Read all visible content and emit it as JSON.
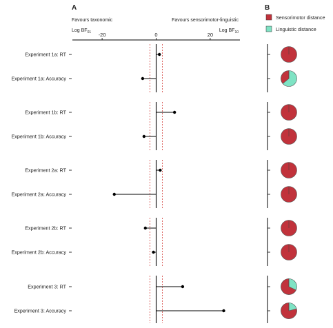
{
  "panels": {
    "a": "A",
    "b": "B"
  },
  "headers": {
    "left": "Favours taxonomic",
    "right": "Favours sensorimotor-linguistic",
    "left_axis_label": "Log BF",
    "left_axis_sub": "01",
    "right_axis_label": "Log BF",
    "right_axis_sub": "10"
  },
  "colors": {
    "sensorimotor": "#c1323b",
    "linguistic": "#7fe3c4",
    "threshold_line": "#d9534f",
    "line": "#000000"
  },
  "chart_data": [
    {
      "type": "scatter",
      "subtype": "forest-plot",
      "x_ticks": [
        {
          "value": -20,
          "label": "-20"
        },
        {
          "value": 0,
          "label": "0"
        },
        {
          "value": 20,
          "label": "20"
        }
      ],
      "xlim": [
        -31,
        31
      ],
      "threshold_lines": [
        -2.3,
        2.3
      ],
      "reference_line": 0,
      "rows": [
        {
          "label": "Experiment 1a: RT",
          "value": 1.2
        },
        {
          "label": "Experiment 1a: Accuracy",
          "value": -5
        },
        {
          "label": "Experiment 1b: RT",
          "value": 6.8
        },
        {
          "label": "Experiment 1b: Accuracy",
          "value": -4.5
        },
        {
          "label": "Experiment 2a: RT",
          "value": 1.5
        },
        {
          "label": "Experiment 2a: Accuracy",
          "value": -15.5
        },
        {
          "label": "Experiment 2b: RT",
          "value": -4
        },
        {
          "label": "Experiment 2b: Accuracy",
          "value": -1
        },
        {
          "label": "Experiment 3: RT",
          "value": 9.8
        },
        {
          "label": "Experiment 3: Accuracy",
          "value": 25
        }
      ]
    },
    {
      "type": "pie",
      "legend": [
        {
          "name": "Sensorimotor distance",
          "color": "#c1323b"
        },
        {
          "name": "Linguistic distance",
          "color": "#7fe3c4"
        }
      ],
      "pies": [
        {
          "row": "Experiment 1a: RT",
          "sensorimotor": 1.0,
          "linguistic": 0.0
        },
        {
          "row": "Experiment 1a: Accuracy",
          "sensorimotor": 0.36,
          "linguistic": 0.64
        },
        {
          "row": "Experiment 1b: RT",
          "sensorimotor": 1.0,
          "linguistic": 0.0
        },
        {
          "row": "Experiment 1b: Accuracy",
          "sensorimotor": 1.0,
          "linguistic": 0.0
        },
        {
          "row": "Experiment 2a: RT",
          "sensorimotor": 1.0,
          "linguistic": 0.0
        },
        {
          "row": "Experiment 2a: Accuracy",
          "sensorimotor": 1.0,
          "linguistic": 0.0
        },
        {
          "row": "Experiment 2b: RT",
          "sensorimotor": 1.0,
          "linguistic": 0.0
        },
        {
          "row": "Experiment 2b: Accuracy",
          "sensorimotor": 1.0,
          "linguistic": 0.0
        },
        {
          "row": "Experiment 3: RT",
          "sensorimotor": 0.68,
          "linguistic": 0.32
        },
        {
          "row": "Experiment 3: Accuracy",
          "sensorimotor": 0.79,
          "linguistic": 0.21
        }
      ]
    }
  ]
}
